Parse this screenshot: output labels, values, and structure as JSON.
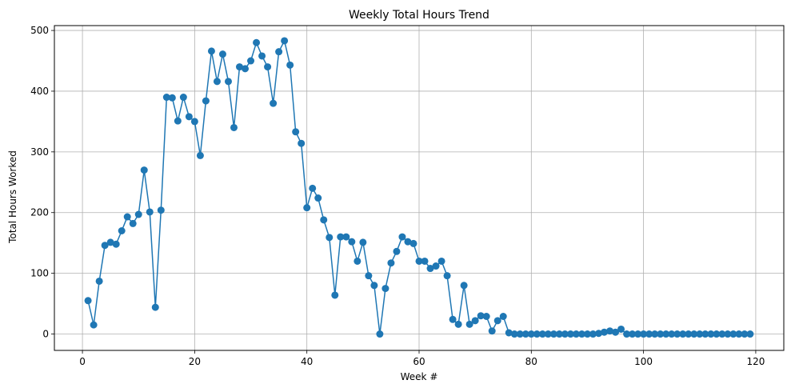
{
  "chart_data": {
    "type": "line",
    "title": "Weekly Total Hours Trend",
    "xlabel": "Week #",
    "ylabel": "Total Hours Worked",
    "xlim": [
      -5,
      125
    ],
    "ylim": [
      -27,
      508
    ],
    "xticks": [
      0,
      20,
      40,
      60,
      80,
      100,
      120
    ],
    "yticks": [
      0,
      100,
      200,
      300,
      400,
      500
    ],
    "grid": true,
    "marker": "circle",
    "color": "#1f77b4",
    "series": [
      {
        "x": [
          1,
          2,
          3,
          4,
          5,
          6,
          7,
          8,
          9,
          10,
          11,
          12,
          13,
          14,
          15,
          16,
          17,
          18,
          19,
          20,
          21,
          22,
          23,
          24,
          25,
          26,
          27,
          28,
          29,
          30,
          31,
          32,
          33,
          34,
          35,
          36,
          37,
          38,
          39,
          40,
          41,
          42,
          43,
          44,
          45,
          46,
          47,
          48,
          49,
          50,
          51,
          52,
          53,
          54,
          55,
          56,
          57,
          58,
          59,
          60,
          61,
          62,
          63,
          64,
          65,
          66,
          67,
          68,
          69,
          70,
          71,
          72,
          73,
          74,
          75,
          76,
          77,
          78,
          79,
          80,
          81,
          82,
          83,
          84,
          85,
          86,
          87,
          88,
          89,
          90,
          91,
          92,
          93,
          94,
          95,
          96,
          97,
          98,
          99,
          100,
          101,
          102,
          103,
          104,
          105,
          106,
          107,
          108,
          109,
          110,
          111,
          112,
          113,
          114,
          115,
          116,
          117,
          118,
          119
        ],
        "values": [
          55,
          15,
          87,
          146,
          151,
          148,
          170,
          193,
          182,
          197,
          270,
          201,
          44,
          204,
          390,
          389,
          351,
          390,
          358,
          350,
          294,
          384,
          466,
          416,
          461,
          416,
          340,
          440,
          437,
          450,
          480,
          458,
          440,
          380,
          465,
          483,
          443,
          333,
          314,
          208,
          240,
          224,
          188,
          159,
          64,
          160,
          160,
          152,
          120,
          151,
          96,
          80,
          0,
          75,
          117,
          136,
          160,
          152,
          149,
          120,
          120,
          108,
          112,
          120,
          96,
          24,
          16,
          80,
          16,
          22,
          30,
          29,
          5,
          22,
          29,
          2,
          0,
          0,
          0,
          0,
          0,
          0,
          0,
          0,
          0,
          0,
          0,
          0,
          0,
          0,
          0,
          1,
          3,
          5,
          3,
          8,
          0,
          0,
          0,
          0,
          0,
          0,
          0,
          0,
          0,
          0,
          0,
          0,
          0,
          0,
          0,
          0,
          0,
          0,
          0,
          0,
          0,
          0,
          0
        ]
      }
    ]
  }
}
